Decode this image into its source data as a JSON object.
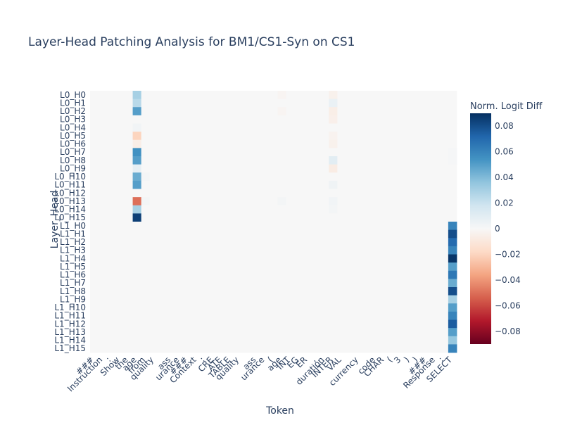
{
  "chart_data": {
    "type": "heatmap",
    "title": "Layer-Head Patching Analysis for BM1/CS1-Syn on CS1",
    "xlabel": "Token",
    "ylabel": "Layer_Head",
    "colorbar": {
      "title": "Norm. Logit Diff",
      "range": [
        -0.09,
        0.09
      ],
      "ticks": [
        0.08,
        0.06,
        0.04,
        0.02,
        0,
        -0.02,
        -0.04,
        -0.06,
        -0.08
      ],
      "tick_labels": [
        "0.08",
        "0.06",
        "0.04",
        "0.02",
        "0",
        "−0.02",
        "−0.04",
        "−0.06",
        "−0.08"
      ],
      "colorscale": "RdBu"
    },
    "x_tokens": [
      "###",
      "Instruction",
      ":",
      "Show",
      "the",
      "age",
      "from",
      "quality",
      "",
      "ass",
      "urance",
      "###",
      "Context",
      ":",
      "CRE",
      "ATE",
      "TABLE",
      "quality",
      "",
      "ass",
      "urance",
      "(",
      "age",
      "INT",
      "EG",
      "ER",
      ",",
      "duration",
      "INTER",
      "VAL",
      "",
      "currency",
      "",
      "code",
      "CHAR",
      "(",
      "3",
      ")",
      ")",
      "###",
      "Response",
      ":",
      "SELECT"
    ],
    "x_tick_labels": [
      "###",
      "Instruction",
      ":",
      "Show",
      "the",
      "age",
      "from",
      "quality",
      "ass",
      "urance",
      "###",
      "Context",
      ":",
      "CRE",
      "ATE",
      "TABLE",
      "quality",
      "ass",
      "urance",
      "(",
      "age",
      "INT",
      "EG",
      "ER",
      ",",
      "duration",
      "INTER",
      "VAL",
      "currency",
      "code",
      "CHAR",
      "(",
      "3",
      ")",
      ")",
      "###",
      "Response",
      ":",
      "SELECT"
    ],
    "y_labels": [
      "L0_H0",
      "L0_H1",
      "L0_H2",
      "L0_H3",
      "L0_H4",
      "L0_H5",
      "L0_H6",
      "L0_H7",
      "L0_H8",
      "L0_H9",
      "L0_H10",
      "L0_H11",
      "L0_H12",
      "L0_H13",
      "L0_H14",
      "L0_H15",
      "L1_H0",
      "L1_H1",
      "L1_H2",
      "L1_H3",
      "L1_H4",
      "L1_H5",
      "L1_H6",
      "L1_H7",
      "L1_H8",
      "L1_H9",
      "L1_H10",
      "L1_H11",
      "L1_H12",
      "L1_H13",
      "L1_H14",
      "L1_H15"
    ],
    "notable_cells": [
      {
        "row": "L0_H0",
        "token_index": 5,
        "value": 0.03
      },
      {
        "row": "L0_H1",
        "token_index": 5,
        "value": 0.025
      },
      {
        "row": "L0_H2",
        "token_index": 5,
        "value": 0.05
      },
      {
        "row": "L0_H4",
        "token_index": 5,
        "value": 0.003
      },
      {
        "row": "L0_H5",
        "token_index": 5,
        "value": -0.02
      },
      {
        "row": "L0_H6",
        "token_index": 5,
        "value": -0.006
      },
      {
        "row": "L0_H7",
        "token_index": 5,
        "value": 0.055
      },
      {
        "row": "L0_H8",
        "token_index": 5,
        "value": 0.05
      },
      {
        "row": "L0_H9",
        "token_index": 5,
        "value": 0.008
      },
      {
        "row": "L0_H10",
        "token_index": 5,
        "value": 0.045
      },
      {
        "row": "L0_H11",
        "token_index": 5,
        "value": 0.05
      },
      {
        "row": "L0_H13",
        "token_index": 5,
        "value": -0.05
      },
      {
        "row": "L0_H14",
        "token_index": 5,
        "value": 0.03
      },
      {
        "row": "L0_H15",
        "token_index": 5,
        "value": 0.085
      },
      {
        "row": "L0_H0",
        "token_index": 28,
        "value": -0.004
      },
      {
        "row": "L0_H1",
        "token_index": 28,
        "value": 0.006
      },
      {
        "row": "L0_H2",
        "token_index": 28,
        "value": -0.006
      },
      {
        "row": "L0_H3",
        "token_index": 28,
        "value": -0.005
      },
      {
        "row": "L0_H5",
        "token_index": 28,
        "value": -0.003
      },
      {
        "row": "L0_H6",
        "token_index": 28,
        "value": -0.004
      },
      {
        "row": "L0_H8",
        "token_index": 28,
        "value": 0.01
      },
      {
        "row": "L0_H9",
        "token_index": 28,
        "value": -0.007
      },
      {
        "row": "L0_H11",
        "token_index": 28,
        "value": 0.004
      },
      {
        "row": "L0_H13",
        "token_index": 28,
        "value": 0.003
      },
      {
        "row": "L0_H14",
        "token_index": 28,
        "value": 0.002
      },
      {
        "row": "L0_H0",
        "token_index": 22,
        "value": -0.002
      },
      {
        "row": "L0_H2",
        "token_index": 22,
        "value": -0.002
      },
      {
        "row": "L0_H13",
        "token_index": 22,
        "value": 0.002
      },
      {
        "row": "L0_H10",
        "token_index": 6,
        "value": 0.002
      },
      {
        "row": "L0_H13",
        "token_index": 6,
        "value": 0.002
      },
      {
        "row": "L1_H0",
        "token_index": 42,
        "value": 0.06
      },
      {
        "row": "L1_H1",
        "token_index": 42,
        "value": 0.08
      },
      {
        "row": "L1_H2",
        "token_index": 42,
        "value": 0.07
      },
      {
        "row": "L1_H3",
        "token_index": 42,
        "value": 0.06
      },
      {
        "row": "L1_H4",
        "token_index": 42,
        "value": 0.088
      },
      {
        "row": "L1_H5",
        "token_index": 42,
        "value": 0.05
      },
      {
        "row": "L1_H6",
        "token_index": 42,
        "value": 0.065
      },
      {
        "row": "L1_H7",
        "token_index": 42,
        "value": 0.045
      },
      {
        "row": "L1_H8",
        "token_index": 42,
        "value": 0.08
      },
      {
        "row": "L1_H9",
        "token_index": 42,
        "value": 0.03
      },
      {
        "row": "L1_H10",
        "token_index": 42,
        "value": 0.05
      },
      {
        "row": "L1_H11",
        "token_index": 42,
        "value": 0.06
      },
      {
        "row": "L1_H12",
        "token_index": 42,
        "value": 0.075
      },
      {
        "row": "L1_H13",
        "token_index": 42,
        "value": 0.05
      },
      {
        "row": "L1_H14",
        "token_index": 42,
        "value": 0.035
      },
      {
        "row": "L1_H15",
        "token_index": 42,
        "value": 0.06
      },
      {
        "row": "L0_H7",
        "token_index": 42,
        "value": 0.001
      },
      {
        "row": "L0_H8",
        "token_index": 42,
        "value": 0.001
      }
    ]
  }
}
